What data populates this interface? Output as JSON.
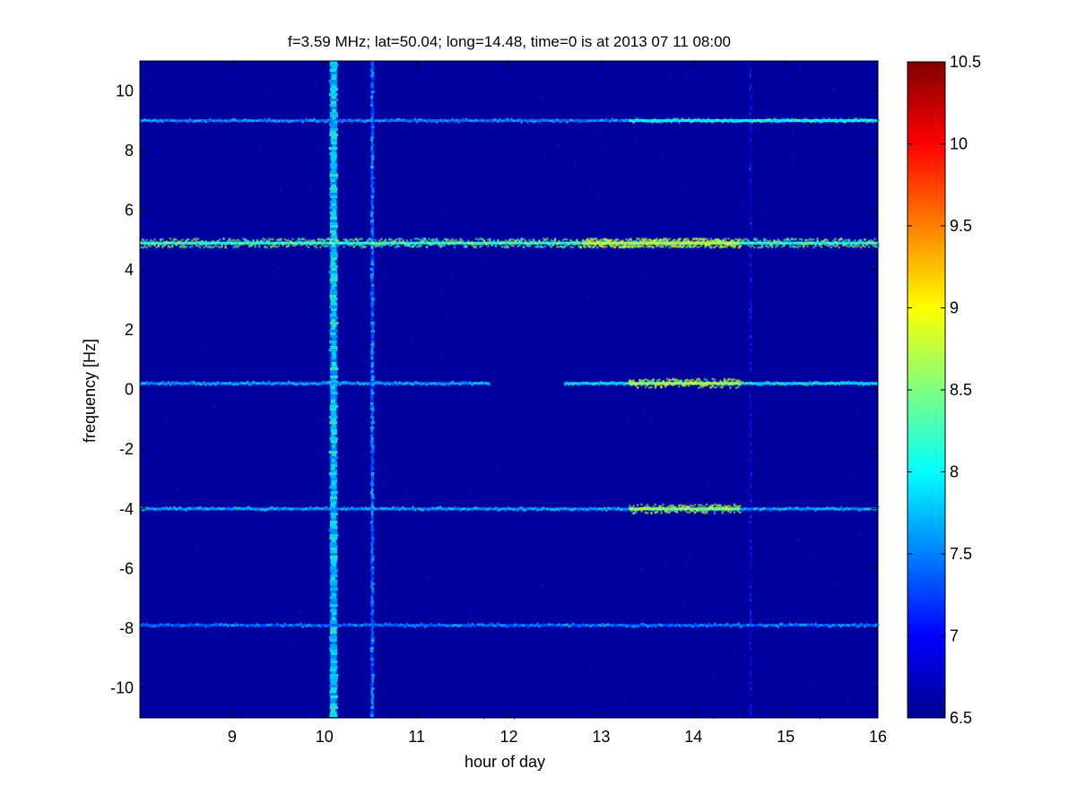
{
  "chart_data": {
    "type": "heatmap",
    "title": "f=3.59 MHz;  lat=50.04; long=14.48, time=0 is at 2013 07 11 08:00",
    "xlabel": "hour of day",
    "ylabel": "frequency [Hz]",
    "xlim": [
      8,
      16
    ],
    "ylim": [
      -11,
      11
    ],
    "xticks": [
      "9",
      "10",
      "11",
      "12",
      "13",
      "14",
      "15",
      "16"
    ],
    "yticks": [
      "-10",
      "-8",
      "-6",
      "-4",
      "-2",
      "0",
      "2",
      "4",
      "6",
      "8",
      "10"
    ],
    "colorbar": {
      "colormap": "jet",
      "range": [
        6.5,
        10.5
      ],
      "ticks": [
        "6.5",
        "7",
        "7.5",
        "8",
        "8.5",
        "9",
        "9.5",
        "10",
        "10.5"
      ]
    },
    "background_level": 6.6,
    "horizontal_bands": [
      {
        "frequency": 9.0,
        "segments": [
          {
            "from": 8,
            "to": 16,
            "level": 7.7
          },
          {
            "from": 13.3,
            "to": 16,
            "level": 8.2
          }
        ]
      },
      {
        "frequency": 4.9,
        "segments": [
          {
            "from": 8,
            "to": 16,
            "level": 8.4
          },
          {
            "from": 12.8,
            "to": 14.5,
            "level": 8.9
          }
        ]
      },
      {
        "frequency": 0.2,
        "segments": [
          {
            "from": 8,
            "to": 11.8,
            "level": 7.8
          },
          {
            "from": 12.6,
            "to": 16,
            "level": 8.1
          },
          {
            "from": 13.3,
            "to": 14.5,
            "level": 8.8
          }
        ]
      },
      {
        "frequency": -4.0,
        "segments": [
          {
            "from": 8,
            "to": 16,
            "level": 7.8
          },
          {
            "from": 13.3,
            "to": 14.5,
            "level": 8.7
          }
        ]
      },
      {
        "frequency": -7.9,
        "segments": [
          {
            "from": 8,
            "to": 16,
            "level": 7.6
          }
        ]
      }
    ],
    "vertical_bands": [
      {
        "hour": 10.1,
        "level": 7.9
      },
      {
        "hour": 10.52,
        "level": 7.5
      },
      {
        "hour": 14.62,
        "level": 7.0
      }
    ]
  }
}
